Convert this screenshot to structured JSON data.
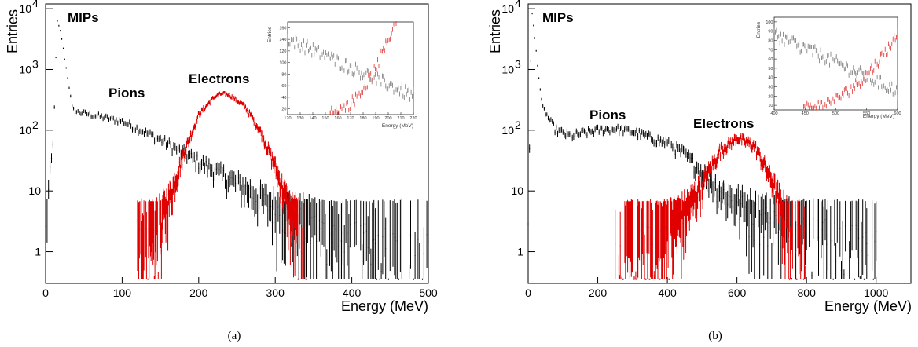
{
  "panels": [
    {
      "caption": "(a)",
      "annotations": {
        "mips": "MIPs",
        "pions": "Pions",
        "electrons": "Electrons"
      },
      "inset": {
        "xlabel": "Energy (MeV)",
        "ylabel": "Entries",
        "xticks": [
          "120",
          "130",
          "140",
          "150",
          "160",
          "170",
          "180",
          "190",
          "200",
          "210",
          "220"
        ],
        "yticks": [
          "20",
          "40",
          "60",
          "80",
          "100",
          "120",
          "140",
          "160"
        ]
      }
    },
    {
      "caption": "(b)",
      "annotations": {
        "mips": "MIPs",
        "pions": "Pions",
        "electrons": "Electrons"
      },
      "inset": {
        "xlabel": "Energy (MeV)",
        "ylabel": "Entries",
        "xticks": [
          "400",
          "450",
          "500",
          "550",
          "600"
        ],
        "yticks": [
          "10",
          "20",
          "30",
          "40",
          "50",
          "60",
          "70",
          "80",
          "90",
          "100"
        ]
      }
    }
  ],
  "colors": {
    "pions": "#000000",
    "electrons": "#e00000",
    "inset_pions": "#777777",
    "inset_electrons": "#e03030"
  },
  "chart_data": [
    {
      "type": "line",
      "xlabel": "Energy (MeV)",
      "ylabel": "Entries",
      "xlim": [
        0,
        500
      ],
      "ylim": [
        0.3,
        12000
      ],
      "yscale": "log",
      "xticks": [
        "0",
        "100",
        "200",
        "300",
        "400",
        "500"
      ],
      "yticks": [
        "1",
        "10",
        "10^2",
        "10^3",
        "10^4"
      ],
      "series": [
        {
          "name": "Pions",
          "x": [
            0,
            5,
            10,
            15,
            20,
            25,
            30,
            35,
            40,
            60,
            100,
            150,
            200,
            250,
            300,
            350,
            400,
            450,
            500
          ],
          "y": [
            2,
            15,
            60,
            6500,
            4000,
            1500,
            600,
            220,
            200,
            180,
            140,
            70,
            30,
            13,
            5,
            2.5,
            1.5,
            1,
            0.8
          ]
        },
        {
          "name": "Electrons",
          "x": [
            120,
            140,
            160,
            180,
            200,
            220,
            230,
            240,
            260,
            280,
            300,
            320,
            340
          ],
          "y": [
            1,
            1.5,
            6,
            40,
            180,
            350,
            400,
            380,
            250,
            100,
            25,
            4,
            1
          ]
        }
      ]
    },
    {
      "type": "line",
      "xlabel": "Energy (MeV)",
      "ylabel": "Entries",
      "xlim": [
        0,
        1100
      ],
      "ylim": [
        0.3,
        12000
      ],
      "yscale": "log",
      "xticks": [
        "0",
        "200",
        "400",
        "600",
        "800",
        "1000"
      ],
      "yticks": [
        "1",
        "10",
        "10^2",
        "10^3",
        "10^4"
      ],
      "series": [
        {
          "name": "Pions",
          "x": [
            0,
            10,
            20,
            30,
            40,
            60,
            80,
            120,
            200,
            250,
            300,
            400,
            450,
            500,
            550,
            600,
            650,
            700,
            800,
            900,
            1000
          ],
          "y": [
            2,
            10000,
            3000,
            800,
            250,
            150,
            100,
            80,
            100,
            105,
            95,
            60,
            40,
            20,
            10,
            6,
            4,
            3,
            2,
            1.5,
            1
          ]
        },
        {
          "name": "Electrons",
          "x": [
            250,
            300,
            350,
            400,
            450,
            500,
            550,
            600,
            650,
            700,
            750,
            800
          ],
          "y": [
            1,
            1,
            1.2,
            2,
            4,
            12,
            45,
            75,
            55,
            15,
            2,
            1
          ]
        }
      ]
    }
  ]
}
